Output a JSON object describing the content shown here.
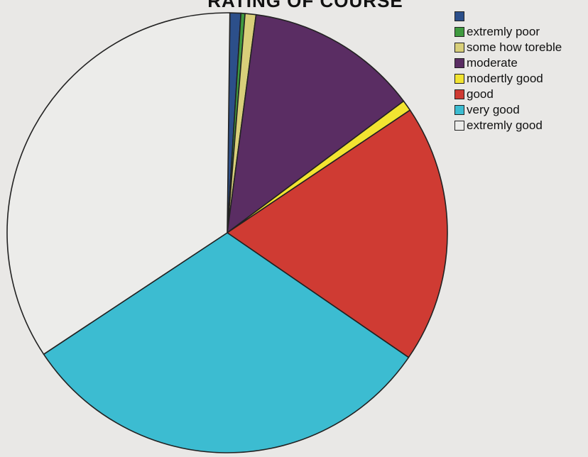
{
  "chart_data": {
    "type": "pie",
    "title": "RATING OF COURSE",
    "slices": [
      {
        "label": "",
        "value": 0.8,
        "color": "#2c4f8a"
      },
      {
        "label": "extremly poor",
        "value": 0.3,
        "color": "#3f9a3f"
      },
      {
        "label": "some how toreble",
        "value": 0.8,
        "color": "#d8cf7a"
      },
      {
        "label": "moderate",
        "value": 12.7,
        "color": "#5a2d63"
      },
      {
        "label": "modertly good",
        "value": 0.8,
        "color": "#f2e431"
      },
      {
        "label": "good",
        "value": 19.0,
        "color": "#cf3b33"
      },
      {
        "label": "very good",
        "value": 31.1,
        "color": "#3cbcd1"
      },
      {
        "label": "extremly  good",
        "value": 34.5,
        "color": "#ececea"
      }
    ],
    "legend_position": "top-right"
  }
}
